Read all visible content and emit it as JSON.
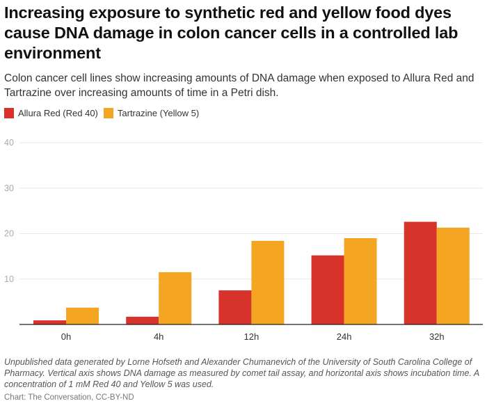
{
  "colors": {
    "series_1": "#d7332a",
    "series_2": "#f4a623",
    "grid": "#e8e8e8",
    "axis": "#222222"
  },
  "chart_data": {
    "type": "bar",
    "title": "Increasing exposure to synthetic red and yellow food dyes cause DNA damage in colon cancer cells in a controlled lab environment",
    "subtitle": "Colon cancer cell lines show increasing amounts of DNA damage when exposed to Allura Red and Tartrazine over increasing amounts of time in a Petri dish.",
    "categories": [
      "0h",
      "4h",
      "12h",
      "24h",
      "32h"
    ],
    "series": [
      {
        "name": "Allura Red (Red 40)",
        "values": [
          0.9,
          1.7,
          7.5,
          15.2,
          22.6
        ]
      },
      {
        "name": "Tartrazine (Yellow 5)",
        "values": [
          3.7,
          11.5,
          18.4,
          19.0,
          21.3
        ]
      }
    ],
    "xlabel": "",
    "ylabel": "",
    "ylim": [
      0,
      40
    ],
    "yticks": [
      10,
      20,
      30,
      40
    ],
    "grid": true,
    "legend": "top-left",
    "footnote": "Unpublished data generated by Lorne Hofseth and Alexander Chumanevich of the University of South Carolina College of Pharmacy. Vertical axis shows DNA damage as measured by comet tail assay, and horizontal axis shows incubation time. A concentration of 1 mM Red 40 and Yellow 5 was used.",
    "credit": "Chart: The Conversation, CC-BY-ND"
  }
}
